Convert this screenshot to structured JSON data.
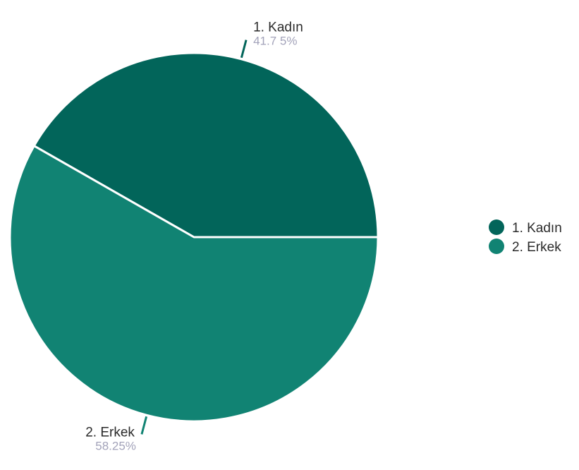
{
  "chart_data": {
    "type": "pie",
    "title": "",
    "slices": [
      {
        "label": "1. Kadın",
        "value": 41.75,
        "value_label": "41.7 5%",
        "color": "#02655a"
      },
      {
        "label": "2. Erkek",
        "value": 58.25,
        "value_label": "58.25%",
        "color": "#118373"
      }
    ],
    "legend": {
      "position": "right",
      "items": [
        "1. Kadın",
        "2. Erkek"
      ]
    },
    "start_angle_deg": 0,
    "direction": "counterclockwise",
    "separator_color": "#ffffff"
  }
}
